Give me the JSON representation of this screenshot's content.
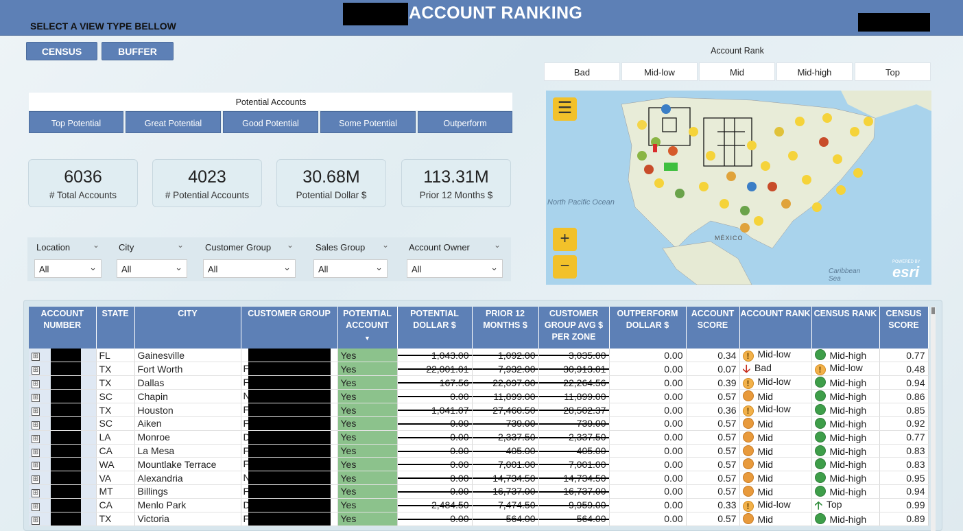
{
  "header": {
    "title": "ACCOUNT RANKING",
    "view_label": "SELECT A VIEW TYPE BELLOW"
  },
  "view_buttons": {
    "census": "CENSUS",
    "buffer": "BUFFER"
  },
  "account_rank": {
    "label": "Account Rank",
    "options": [
      "Bad",
      "Mid-low",
      "Mid",
      "Mid-high",
      "Top"
    ]
  },
  "potential_accounts": {
    "label": "Potential Accounts",
    "options": [
      "Top Potential",
      "Great Potential",
      "Good Potential",
      "Some Potential",
      "Outperform"
    ]
  },
  "kpis": [
    {
      "value": "6036",
      "label": "# Total Accounts"
    },
    {
      "value": "4023",
      "label": "# Potential Accounts"
    },
    {
      "value": "30.68M",
      "label": "Potential Dollar $"
    },
    {
      "value": "113.31M",
      "label": "Prior 12 Months $"
    }
  ],
  "filters": [
    {
      "label": "Location",
      "value": "All"
    },
    {
      "label": "City",
      "value": "All"
    },
    {
      "label": "Customer Group",
      "value": "All"
    },
    {
      "label": "Sales Group",
      "value": "All"
    },
    {
      "label": "Account Owner",
      "value": "All"
    }
  ],
  "map": {
    "labels": {
      "ocean": "North Pacific Ocean",
      "mexico": "MÉXICO",
      "caribbean": "Caribbean Sea",
      "brand": "esri",
      "powered": "POWERED BY"
    },
    "icons": {
      "menu": "menu-icon",
      "zoom_in": "zoom-in-icon",
      "zoom_out": "zoom-out-icon"
    }
  },
  "table": {
    "columns": [
      "ACCOUNT NUMBER",
      "STATE",
      "CITY",
      "CUSTOMER GROUP",
      "POTENTIAL ACCOUNT",
      "POTENTIAL DOLLAR $",
      "PRIOR 12 MONTHS $",
      "CUSTOMER GROUP AVG $ PER ZONE",
      "OUTPERFORM DOLLAR $",
      "ACCOUNT SCORE",
      "ACCOUNT RANK",
      "CENSUS RANK",
      "CENSUS SCORE"
    ],
    "rows": [
      {
        "state": "FL",
        "city": "Gainesville",
        "grp": "",
        "pot": "Yes",
        "pd": "1,043.00",
        "p12": "1,092.00",
        "avg": "3,035.00",
        "out": "0.00",
        "score": "0.34",
        "rank": "Mid-low",
        "rank_icon": "midlow",
        "crank": "Mid-high",
        "crank_icon": "midhigh",
        "cscore": "0.77"
      },
      {
        "state": "TX",
        "city": "Fort Worth",
        "grp": "F",
        "pot": "Yes",
        "pd": "22,001.01",
        "p12": "7,932.00",
        "avg": "30,913.01",
        "out": "0.00",
        "score": "0.07",
        "rank": "Bad",
        "rank_icon": "arrowdown",
        "crank": "Mid-low",
        "crank_icon": "midlow",
        "cscore": "0.48"
      },
      {
        "state": "TX",
        "city": "Dallas",
        "grp": "F",
        "pot": "Yes",
        "pd": "167.56",
        "p12": "22,097.00",
        "avg": "22,264.56",
        "out": "0.00",
        "score": "0.39",
        "rank": "Mid-low",
        "rank_icon": "midlow",
        "crank": "Mid-high",
        "crank_icon": "midhigh",
        "cscore": "0.94"
      },
      {
        "state": "SC",
        "city": "Chapin",
        "grp": "N",
        "pot": "Yes",
        "pd": "0.00",
        "p12": "11,899.00",
        "avg": "11,899.00",
        "out": "0.00",
        "score": "0.57",
        "rank": "Mid",
        "rank_icon": "mid",
        "crank": "Mid-high",
        "crank_icon": "midhigh",
        "cscore": "0.86"
      },
      {
        "state": "TX",
        "city": "Houston",
        "grp": "F",
        "pot": "Yes",
        "pd": "1,041.07",
        "p12": "27,460.50",
        "avg": "28,502.37",
        "out": "0.00",
        "score": "0.36",
        "rank": "Mid-low",
        "rank_icon": "midlow",
        "crank": "Mid-high",
        "crank_icon": "midhigh",
        "cscore": "0.85"
      },
      {
        "state": "SC",
        "city": "Aiken",
        "grp": "F",
        "pot": "Yes",
        "pd": "0.00",
        "p12": "739.00",
        "avg": "739.00",
        "out": "0.00",
        "score": "0.57",
        "rank": "Mid",
        "rank_icon": "mid",
        "crank": "Mid-high",
        "crank_icon": "midhigh",
        "cscore": "0.92"
      },
      {
        "state": "LA",
        "city": "Monroe",
        "grp": "D",
        "pot": "Yes",
        "pd": "0.00",
        "p12": "2,337.50",
        "avg": "2,337.50",
        "out": "0.00",
        "score": "0.57",
        "rank": "Mid",
        "rank_icon": "mid",
        "crank": "Mid-high",
        "crank_icon": "midhigh",
        "cscore": "0.77"
      },
      {
        "state": "CA",
        "city": "La Mesa",
        "grp": "F",
        "pot": "Yes",
        "pd": "0.00",
        "p12": "405.00",
        "avg": "405.00",
        "out": "0.00",
        "score": "0.57",
        "rank": "Mid",
        "rank_icon": "mid",
        "crank": "Mid-high",
        "crank_icon": "midhigh",
        "cscore": "0.83"
      },
      {
        "state": "WA",
        "city": "Mountlake Terrace",
        "grp": "F",
        "pot": "Yes",
        "pd": "0.00",
        "p12": "7,001.00",
        "avg": "7,001.00",
        "out": "0.00",
        "score": "0.57",
        "rank": "Mid",
        "rank_icon": "mid",
        "crank": "Mid-high",
        "crank_icon": "midhigh",
        "cscore": "0.83"
      },
      {
        "state": "VA",
        "city": "Alexandria",
        "grp": "N",
        "pot": "Yes",
        "pd": "0.00",
        "p12": "14,734.50",
        "avg": "14,734.50",
        "out": "0.00",
        "score": "0.57",
        "rank": "Mid",
        "rank_icon": "mid",
        "crank": "Mid-high",
        "crank_icon": "midhigh",
        "cscore": "0.95"
      },
      {
        "state": "MT",
        "city": "Billings",
        "grp": "F",
        "pot": "Yes",
        "pd": "0.00",
        "p12": "16,737.00",
        "avg": "16,737.00",
        "out": "0.00",
        "score": "0.57",
        "rank": "Mid",
        "rank_icon": "mid",
        "crank": "Mid-high",
        "crank_icon": "midhigh",
        "cscore": "0.94"
      },
      {
        "state": "CA",
        "city": "Menlo Park",
        "grp": "D",
        "pot": "Yes",
        "pd": "2,484.50",
        "p12": "7,474.50",
        "avg": "9,959.00",
        "out": "0.00",
        "score": "0.33",
        "rank": "Mid-low",
        "rank_icon": "midlow",
        "crank": "Top",
        "crank_icon": "arrowup",
        "cscore": "0.99"
      },
      {
        "state": "TX",
        "city": "Victoria",
        "grp": "F",
        "pot": "Yes",
        "pd": "0.00",
        "p12": "564.00",
        "avg": "564.00",
        "out": "0.00",
        "score": "0.57",
        "rank": "Mid",
        "rank_icon": "mid",
        "crank": "Mid-high",
        "crank_icon": "midhigh",
        "cscore": "0.89"
      }
    ]
  }
}
